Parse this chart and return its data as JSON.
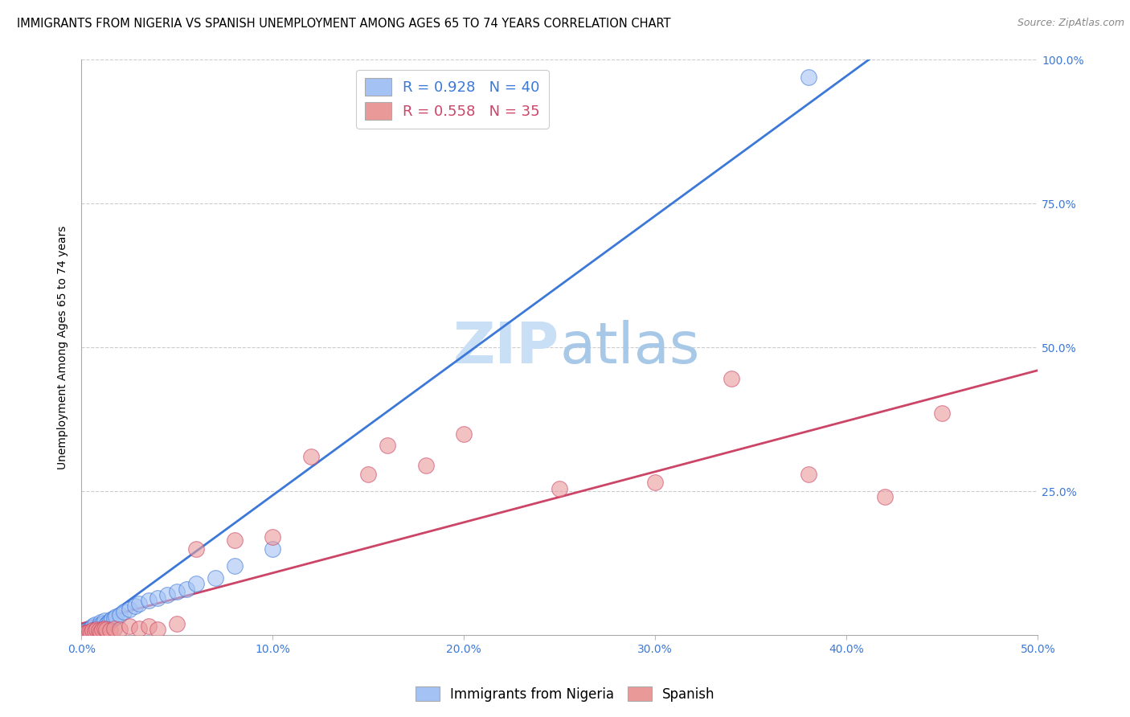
{
  "title": "IMMIGRANTS FROM NIGERIA VS SPANISH UNEMPLOYMENT AMONG AGES 65 TO 74 YEARS CORRELATION CHART",
  "source": "Source: ZipAtlas.com",
  "ylabel": "Unemployment Among Ages 65 to 74 years",
  "xlim": [
    0.0,
    0.5
  ],
  "ylim": [
    0.0,
    1.0
  ],
  "xtick_labels": [
    "0.0%",
    "10.0%",
    "20.0%",
    "30.0%",
    "40.0%",
    "50.0%"
  ],
  "xtick_values": [
    0.0,
    0.1,
    0.2,
    0.3,
    0.4,
    0.5
  ],
  "ytick_labels": [
    "25.0%",
    "50.0%",
    "75.0%",
    "100.0%"
  ],
  "ytick_values": [
    0.25,
    0.5,
    0.75,
    1.0
  ],
  "blue_R": 0.928,
  "blue_N": 40,
  "pink_R": 0.558,
  "pink_N": 35,
  "blue_color": "#a4c2f4",
  "pink_color": "#ea9999",
  "blue_line_color": "#3c78d8",
  "pink_line_color": "#cc4466",
  "watermark_color": "#ddeeff",
  "blue_scatter_x": [
    0.001,
    0.002,
    0.002,
    0.003,
    0.003,
    0.004,
    0.004,
    0.005,
    0.005,
    0.006,
    0.006,
    0.007,
    0.007,
    0.008,
    0.009,
    0.01,
    0.01,
    0.011,
    0.012,
    0.013,
    0.014,
    0.015,
    0.016,
    0.017,
    0.018,
    0.02,
    0.022,
    0.025,
    0.028,
    0.03,
    0.035,
    0.04,
    0.045,
    0.05,
    0.055,
    0.06,
    0.07,
    0.08,
    0.1,
    0.38
  ],
  "blue_scatter_y": [
    0.002,
    0.003,
    0.005,
    0.004,
    0.008,
    0.006,
    0.01,
    0.005,
    0.012,
    0.008,
    0.015,
    0.01,
    0.018,
    0.012,
    0.015,
    0.018,
    0.022,
    0.02,
    0.025,
    0.018,
    0.022,
    0.025,
    0.028,
    0.03,
    0.032,
    0.035,
    0.04,
    0.045,
    0.05,
    0.055,
    0.06,
    0.065,
    0.07,
    0.075,
    0.08,
    0.09,
    0.1,
    0.12,
    0.15,
    0.97
  ],
  "pink_scatter_x": [
    0.001,
    0.002,
    0.003,
    0.004,
    0.005,
    0.006,
    0.007,
    0.008,
    0.009,
    0.01,
    0.011,
    0.012,
    0.013,
    0.015,
    0.017,
    0.02,
    0.025,
    0.03,
    0.035,
    0.04,
    0.05,
    0.06,
    0.08,
    0.1,
    0.12,
    0.15,
    0.16,
    0.18,
    0.2,
    0.25,
    0.3,
    0.34,
    0.38,
    0.42,
    0.45
  ],
  "pink_scatter_y": [
    0.003,
    0.005,
    0.004,
    0.006,
    0.005,
    0.008,
    0.007,
    0.01,
    0.008,
    0.006,
    0.01,
    0.012,
    0.01,
    0.008,
    0.012,
    0.01,
    0.015,
    0.012,
    0.015,
    0.01,
    0.02,
    0.15,
    0.165,
    0.17,
    0.31,
    0.28,
    0.33,
    0.295,
    0.35,
    0.255,
    0.265,
    0.445,
    0.28,
    0.24,
    0.385
  ],
  "title_fontsize": 10.5,
  "source_fontsize": 9,
  "axis_label_fontsize": 10,
  "tick_fontsize": 10,
  "legend_fontsize": 13,
  "watermark_fontsize": 52
}
